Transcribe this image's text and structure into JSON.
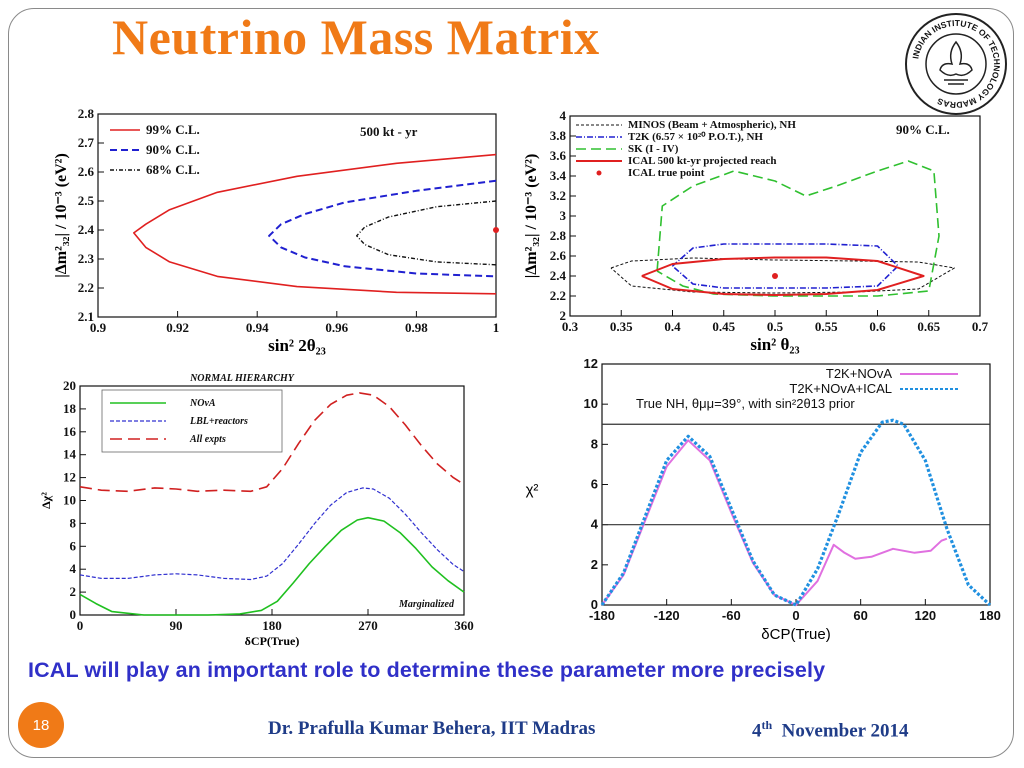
{
  "slide": {
    "title": "Neutrino Mass Matrix",
    "summary": "ICAL will play an important role to determine these parameter more precisely",
    "number": "18",
    "author": "Dr. Prafulla Kumar Behera, IIT Madras",
    "date_day": "4",
    "date_sup": "th",
    "date_rest": "November 2014",
    "logo_text": "INDIAN INSTITUTE OF TECHNOLOGY MADRAS"
  },
  "chart_data": [
    {
      "type": "line",
      "id": "plot-a",
      "title": "500 kt - yr",
      "xlabel": "sin² 2θ₂₃",
      "ylabel": "|Δm²₃₂| / 10⁻³ (eV²)",
      "xlim": [
        0.9,
        1.0
      ],
      "ylim": [
        2.1,
        2.8
      ],
      "xticks": [
        "0.9",
        "0.92",
        "0.94",
        "0.96",
        "0.98",
        "1"
      ],
      "yticks": [
        "2.1",
        "2.2",
        "2.3",
        "2.4",
        "2.5",
        "2.6",
        "2.7",
        "2.8"
      ],
      "legend": [
        "99% C.L.",
        "90% C.L.",
        "68% C.L."
      ],
      "series": [
        {
          "name": "99% C.L.",
          "color": "#e02020",
          "x": [
            1.0,
            0.975,
            0.95,
            0.93,
            0.918,
            0.912,
            0.909,
            0.912,
            0.918,
            0.93,
            0.95,
            0.975,
            1.0
          ],
          "y": [
            2.66,
            2.63,
            2.585,
            2.53,
            2.47,
            2.42,
            2.39,
            2.34,
            2.29,
            2.24,
            2.205,
            2.185,
            2.18
          ]
        },
        {
          "name": "90% C.L.",
          "color": "#2020d0",
          "x": [
            1.0,
            0.98,
            0.962,
            0.952,
            0.946,
            0.943,
            0.946,
            0.952,
            0.962,
            0.98,
            1.0
          ],
          "y": [
            2.57,
            2.535,
            2.495,
            2.455,
            2.42,
            2.38,
            2.34,
            2.305,
            2.275,
            2.25,
            2.24
          ]
        },
        {
          "name": "68% C.L.",
          "color": "#111111",
          "x": [
            1.0,
            0.985,
            0.973,
            0.967,
            0.965,
            0.967,
            0.973,
            0.985,
            1.0
          ],
          "y": [
            2.5,
            2.48,
            2.445,
            2.41,
            2.38,
            2.35,
            2.315,
            2.29,
            2.28
          ]
        }
      ],
      "points": [
        {
          "x": 1.0,
          "y": 2.4,
          "color": "#e02020"
        }
      ]
    },
    {
      "type": "line",
      "id": "plot-b",
      "title": "90% C.L.",
      "xlabel": "sin² θ₂₃",
      "ylabel": "|Δm²₃₂| / 10⁻³ (eV²)",
      "xlim": [
        0.3,
        0.7
      ],
      "ylim": [
        2.0,
        4.0
      ],
      "xticks": [
        "0.3",
        "0.35",
        "0.4",
        "0.45",
        "0.5",
        "0.55",
        "0.6",
        "0.65",
        "0.7"
      ],
      "yticks": [
        "2",
        "2.2",
        "2.4",
        "2.6",
        "2.8",
        "3",
        "3.2",
        "3.4",
        "3.6",
        "3.8",
        "4"
      ],
      "legend": [
        "MINOS (Beam + Atmospheric), NH",
        "T2K (6.57 × 10²⁰ P.O.T.), NH",
        "SK (I - IV)",
        "ICAL 500 kt-yr projected reach",
        "ICAL true point"
      ],
      "series": [
        {
          "name": "MINOS (Beam + Atmospheric), NH",
          "color": "#111111",
          "x": [
            0.34,
            0.36,
            0.42,
            0.5,
            0.58,
            0.64,
            0.675,
            0.64,
            0.58,
            0.5,
            0.42,
            0.36,
            0.34
          ],
          "y": [
            2.48,
            2.55,
            2.58,
            2.56,
            2.55,
            2.54,
            2.48,
            2.27,
            2.24,
            2.23,
            2.24,
            2.3,
            2.48
          ]
        },
        {
          "name": "T2K (6.57 × 10²⁰ P.O.T.), NH",
          "color": "#2020d0",
          "x": [
            0.4,
            0.42,
            0.45,
            0.5,
            0.55,
            0.6,
            0.62,
            0.6,
            0.55,
            0.5,
            0.45,
            0.42,
            0.4
          ],
          "y": [
            2.5,
            2.68,
            2.72,
            2.72,
            2.72,
            2.7,
            2.5,
            2.3,
            2.28,
            2.28,
            2.28,
            2.32,
            2.5
          ]
        },
        {
          "name": "SK (I - IV)",
          "color": "#30c030",
          "x": [
            0.385,
            0.39,
            0.42,
            0.46,
            0.5,
            0.53,
            0.56,
            0.6,
            0.63,
            0.655,
            0.66,
            0.65,
            0.6,
            0.5,
            0.44,
            0.41,
            0.385
          ],
          "y": [
            2.45,
            3.1,
            3.3,
            3.45,
            3.35,
            3.2,
            3.3,
            3.45,
            3.55,
            3.45,
            2.8,
            2.25,
            2.2,
            2.2,
            2.22,
            2.3,
            2.45
          ]
        },
        {
          "name": "ICAL 500 kt-yr projected reach",
          "color": "#e02020",
          "x": [
            0.37,
            0.4,
            0.45,
            0.5,
            0.55,
            0.6,
            0.645,
            0.6,
            0.55,
            0.5,
            0.45,
            0.4,
            0.37
          ],
          "y": [
            2.4,
            2.52,
            2.57,
            2.585,
            2.585,
            2.55,
            2.4,
            2.26,
            2.22,
            2.21,
            2.22,
            2.27,
            2.4
          ]
        }
      ],
      "points": [
        {
          "x": 0.5,
          "y": 2.4,
          "color": "#e02020"
        }
      ]
    },
    {
      "type": "line",
      "id": "plot-c",
      "title": "NORMAL HIERARCHY",
      "annotation": "Marginalized",
      "xlabel": "δCP(True)",
      "ylabel": "Δχ²",
      "xlim": [
        0,
        360
      ],
      "ylim": [
        0,
        20
      ],
      "xticks": [
        "0",
        "90",
        "180",
        "270",
        "360"
      ],
      "yticks": [
        "0",
        "2",
        "4",
        "6",
        "8",
        "10",
        "12",
        "14",
        "16",
        "18",
        "20"
      ],
      "legend": [
        "NOvA",
        "LBL+reactors",
        "All expts"
      ],
      "series": [
        {
          "name": "NOvA",
          "color": "#20c020",
          "x": [
            0,
            15,
            30,
            60,
            90,
            120,
            150,
            170,
            185,
            200,
            215,
            230,
            245,
            260,
            270,
            285,
            300,
            315,
            330,
            345,
            360
          ],
          "y": [
            1.8,
            1.0,
            0.3,
            0.0,
            0.0,
            0.0,
            0.1,
            0.4,
            1.2,
            2.8,
            4.5,
            6.0,
            7.4,
            8.3,
            8.5,
            8.2,
            7.2,
            5.8,
            4.2,
            3.0,
            2.0
          ]
        },
        {
          "name": "LBL+reactors",
          "color": "#3030d0",
          "x": [
            0,
            20,
            45,
            70,
            90,
            110,
            135,
            160,
            175,
            190,
            205,
            220,
            235,
            250,
            265,
            275,
            290,
            305,
            320,
            335,
            350,
            360
          ],
          "y": [
            3.5,
            3.2,
            3.2,
            3.5,
            3.6,
            3.5,
            3.2,
            3.1,
            3.4,
            4.5,
            6.2,
            8.0,
            9.6,
            10.7,
            11.1,
            11.0,
            10.2,
            8.8,
            7.2,
            5.7,
            4.4,
            3.8
          ]
        },
        {
          "name": "All expts",
          "color": "#d02020",
          "x": [
            0,
            20,
            45,
            70,
            90,
            110,
            135,
            160,
            175,
            190,
            205,
            220,
            235,
            250,
            262,
            275,
            290,
            305,
            320,
            335,
            350,
            360
          ],
          "y": [
            11.2,
            10.9,
            10.8,
            11.1,
            11.0,
            10.8,
            10.9,
            10.8,
            11.2,
            12.8,
            15.0,
            17.0,
            18.4,
            19.2,
            19.4,
            19.2,
            18.2,
            16.6,
            14.8,
            13.2,
            12.0,
            11.4
          ]
        }
      ]
    },
    {
      "type": "line",
      "id": "plot-d",
      "xlabel": "δCP(True)",
      "ylabel": "χ²",
      "xlim": [
        -180,
        180
      ],
      "ylim": [
        0,
        12
      ],
      "xticks": [
        "-180",
        "-120",
        "-60",
        "0",
        "60",
        "120",
        "180"
      ],
      "yticks": [
        "0",
        "2",
        "4",
        "6",
        "8",
        "10",
        "12"
      ],
      "legend": [
        "T2K+NOvA",
        "T2K+NOvA+ICAL"
      ],
      "note": "True NH, θμμ=39°, with sin²2θ13 prior",
      "reference_lines": [
        4,
        9
      ],
      "series": [
        {
          "name": "T2K+NOvA",
          "color": "#e070e0",
          "x": [
            -180,
            -160,
            -140,
            -120,
            -100,
            -80,
            -60,
            -40,
            -20,
            0,
            20,
            35,
            45,
            55,
            70,
            90,
            110,
            125,
            135,
            140
          ],
          "y": [
            0,
            1.5,
            4.2,
            6.9,
            8.2,
            7.2,
            4.6,
            2.1,
            0.5,
            0,
            1.2,
            3.0,
            2.6,
            2.3,
            2.4,
            2.8,
            2.6,
            2.7,
            3.2,
            3.3
          ]
        },
        {
          "name": "T2K+NOvA+ICAL",
          "color": "#2090e0",
          "x": [
            -180,
            -160,
            -140,
            -120,
            -100,
            -80,
            -60,
            -40,
            -20,
            0,
            20,
            40,
            60,
            80,
            90,
            100,
            120,
            140,
            160,
            180
          ],
          "y": [
            0,
            1.6,
            4.4,
            7.2,
            8.4,
            7.4,
            4.8,
            2.2,
            0.5,
            0,
            1.8,
            4.6,
            7.6,
            9.1,
            9.2,
            9.0,
            7.2,
            3.8,
            1.0,
            0
          ]
        }
      ]
    }
  ]
}
